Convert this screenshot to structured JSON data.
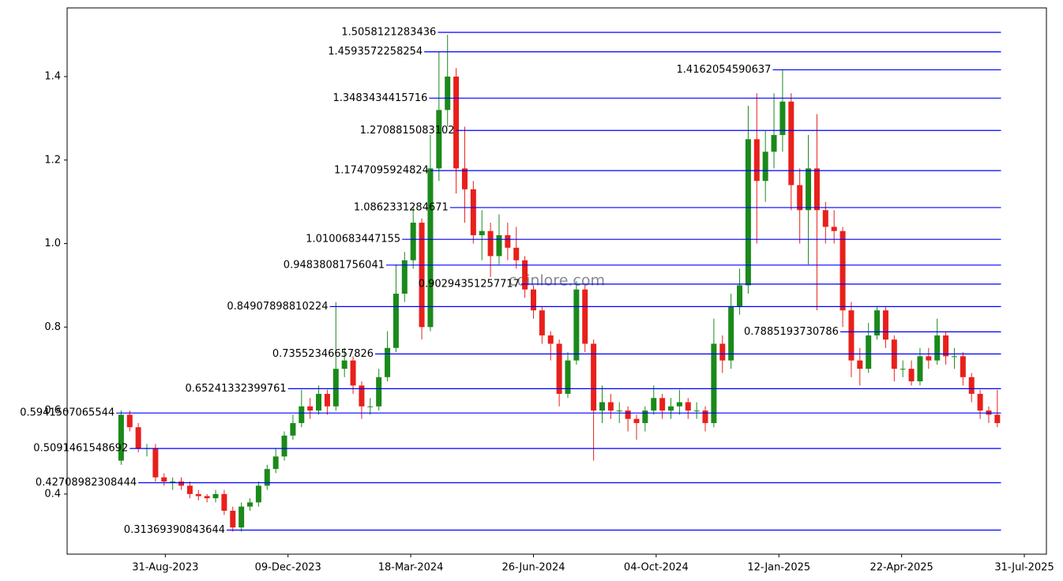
{
  "chart_data": {
    "type": "candlestick",
    "watermark": "coinlore.com",
    "up_color": "#1a8a1a",
    "down_color": "#e8201a",
    "level_color": "#0000ff",
    "watermark_color": "#8a8a8a",
    "xlim": [
      "2023-06-12",
      "2025-08-18"
    ],
    "xticks": [
      {
        "value": "2023-08-31",
        "label": "31-Aug-2023"
      },
      {
        "value": "2023-12-09",
        "label": "09-Dec-2023"
      },
      {
        "value": "2024-03-18",
        "label": "18-Mar-2024"
      },
      {
        "value": "2024-06-26",
        "label": "26-Jun-2024"
      },
      {
        "value": "2024-10-04",
        "label": "04-Oct-2024"
      },
      {
        "value": "2025-01-12",
        "label": "12-Jan-2025"
      },
      {
        "value": "2025-04-22",
        "label": "22-Apr-2025"
      },
      {
        "value": "2025-07-31",
        "label": "31-Jul-2025"
      }
    ],
    "ylim": [
      0.256,
      1.5645
    ],
    "yticks": [
      0.4,
      0.6,
      0.8,
      {
        "value": 1.0,
        "label": "1.0"
      },
      1.2,
      1.4
    ],
    "x": [
      "2023-07-26",
      "2023-08-02",
      "2023-08-09",
      "2023-08-16",
      "2023-08-23",
      "2023-08-30",
      "2023-09-06",
      "2023-09-13",
      "2023-09-20",
      "2023-09-27",
      "2023-10-04",
      "2023-10-11",
      "2023-10-18",
      "2023-10-25",
      "2023-11-01",
      "2023-11-08",
      "2023-11-15",
      "2023-11-22",
      "2023-11-29",
      "2023-12-06",
      "2023-12-13",
      "2023-12-20",
      "2023-12-27",
      "2024-01-03",
      "2024-01-10",
      "2024-01-17",
      "2024-01-24",
      "2024-01-31",
      "2024-02-07",
      "2024-02-14",
      "2024-02-21",
      "2024-02-28",
      "2024-03-06",
      "2024-03-13",
      "2024-03-20",
      "2024-03-27",
      "2024-04-03",
      "2024-04-10",
      "2024-04-17",
      "2024-04-24",
      "2024-05-01",
      "2024-05-08",
      "2024-05-15",
      "2024-05-22",
      "2024-05-29",
      "2024-06-05",
      "2024-06-12",
      "2024-06-19",
      "2024-06-26",
      "2024-07-03",
      "2024-07-10",
      "2024-07-17",
      "2024-07-24",
      "2024-07-31",
      "2024-08-07",
      "2024-08-14",
      "2024-08-21",
      "2024-08-28",
      "2024-09-04",
      "2024-09-11",
      "2024-09-18",
      "2024-09-25",
      "2024-10-02",
      "2024-10-09",
      "2024-10-16",
      "2024-10-23",
      "2024-10-30",
      "2024-11-06",
      "2024-11-13",
      "2024-11-20",
      "2024-11-27",
      "2024-12-04",
      "2024-12-11",
      "2024-12-18",
      "2024-12-25",
      "2025-01-01",
      "2025-01-08",
      "2025-01-15",
      "2025-01-22",
      "2025-01-29",
      "2025-02-05",
      "2025-02-12",
      "2025-02-19",
      "2025-02-26",
      "2025-03-05",
      "2025-03-12",
      "2025-03-19",
      "2025-03-26",
      "2025-04-02",
      "2025-04-09",
      "2025-04-16",
      "2025-04-23",
      "2025-04-30",
      "2025-05-07",
      "2025-05-14",
      "2025-05-21",
      "2025-05-28",
      "2025-06-04",
      "2025-06-11",
      "2025-06-18",
      "2025-06-25",
      "2025-07-02",
      "2025-07-09"
    ],
    "open": [
      0.48,
      0.59,
      0.56,
      0.51,
      0.51,
      0.44,
      0.43,
      0.43,
      0.42,
      0.4,
      0.395,
      0.39,
      0.4,
      0.36,
      0.32,
      0.37,
      0.38,
      0.42,
      0.46,
      0.49,
      0.54,
      0.57,
      0.61,
      0.6,
      0.64,
      0.61,
      0.7,
      0.72,
      0.66,
      0.61,
      0.61,
      0.68,
      0.75,
      0.88,
      0.96,
      1.05,
      0.8,
      1.18,
      1.32,
      1.4,
      1.18,
      1.13,
      1.02,
      1.03,
      0.97,
      1.02,
      0.99,
      0.96,
      0.89,
      0.84,
      0.78,
      0.76,
      0.64,
      0.72,
      0.89,
      0.76,
      0.6,
      0.62,
      0.6,
      0.6,
      0.58,
      0.57,
      0.6,
      0.63,
      0.6,
      0.61,
      0.62,
      0.6,
      0.6,
      0.57,
      0.76,
      0.72,
      0.85,
      0.9,
      1.25,
      1.15,
      1.22,
      1.26,
      1.34,
      1.14,
      1.08,
      1.18,
      1.08,
      1.04,
      1.03,
      0.84,
      0.72,
      0.7,
      0.78,
      0.84,
      0.77,
      0.7,
      0.7,
      0.67,
      0.73,
      0.72,
      0.78,
      0.73,
      0.73,
      0.68,
      0.64,
      0.6,
      0.59
    ],
    "high": [
      0.6,
      0.6,
      0.57,
      0.52,
      0.52,
      0.45,
      0.44,
      0.44,
      0.43,
      0.41,
      0.4,
      0.41,
      0.41,
      0.37,
      0.38,
      0.39,
      0.43,
      0.47,
      0.51,
      0.55,
      0.59,
      0.65,
      0.63,
      0.66,
      0.65,
      0.86,
      0.75,
      0.73,
      0.67,
      0.63,
      0.7,
      0.79,
      0.95,
      0.98,
      1.09,
      1.06,
      1.26,
      1.46,
      1.5,
      1.42,
      1.28,
      1.15,
      1.08,
      1.05,
      1.07,
      1.05,
      1.04,
      0.97,
      0.9,
      0.85,
      0.79,
      0.77,
      0.74,
      0.91,
      0.9,
      0.77,
      0.66,
      0.64,
      0.62,
      0.61,
      0.59,
      0.61,
      0.66,
      0.64,
      0.63,
      0.65,
      0.63,
      0.62,
      0.61,
      0.82,
      0.78,
      0.88,
      0.94,
      1.33,
      1.36,
      1.27,
      1.36,
      1.416,
      1.36,
      1.18,
      1.26,
      1.31,
      1.1,
      1.08,
      1.04,
      0.86,
      0.75,
      0.81,
      0.85,
      0.85,
      0.78,
      0.72,
      0.72,
      0.75,
      0.75,
      0.82,
      0.79,
      0.75,
      0.74,
      0.69,
      0.65,
      0.61,
      0.65
    ],
    "low": [
      0.47,
      0.55,
      0.5,
      0.49,
      0.43,
      0.42,
      0.41,
      0.41,
      0.39,
      0.385,
      0.38,
      0.38,
      0.35,
      0.31,
      0.31,
      0.36,
      0.37,
      0.41,
      0.45,
      0.48,
      0.53,
      0.56,
      0.58,
      0.59,
      0.59,
      0.6,
      0.68,
      0.64,
      0.58,
      0.59,
      0.6,
      0.67,
      0.74,
      0.86,
      0.94,
      0.77,
      0.79,
      1.15,
      1.28,
      1.12,
      1.05,
      1.0,
      0.96,
      0.92,
      0.95,
      0.96,
      0.94,
      0.87,
      0.82,
      0.76,
      0.72,
      0.61,
      0.63,
      0.71,
      0.74,
      0.48,
      0.57,
      0.58,
      0.57,
      0.55,
      0.53,
      0.55,
      0.59,
      0.58,
      0.58,
      0.59,
      0.58,
      0.58,
      0.55,
      0.56,
      0.69,
      0.7,
      0.83,
      0.88,
      1.0,
      1.1,
      1.18,
      1.22,
      1.08,
      1.0,
      0.95,
      0.84,
      1.0,
      1.0,
      0.8,
      0.68,
      0.66,
      0.69,
      0.77,
      0.75,
      0.67,
      0.68,
      0.66,
      0.66,
      0.7,
      0.71,
      0.71,
      0.7,
      0.66,
      0.62,
      0.58,
      0.57,
      0.56
    ],
    "close": [
      0.59,
      0.56,
      0.51,
      0.51,
      0.44,
      0.43,
      0.43,
      0.42,
      0.4,
      0.395,
      0.39,
      0.4,
      0.36,
      0.32,
      0.37,
      0.38,
      0.42,
      0.46,
      0.49,
      0.54,
      0.57,
      0.61,
      0.6,
      0.64,
      0.61,
      0.7,
      0.72,
      0.66,
      0.61,
      0.61,
      0.68,
      0.75,
      0.88,
      0.96,
      1.05,
      0.8,
      1.18,
      1.32,
      1.4,
      1.18,
      1.13,
      1.02,
      1.03,
      0.97,
      1.02,
      0.99,
      0.96,
      0.89,
      0.84,
      0.78,
      0.76,
      0.64,
      0.72,
      0.89,
      0.76,
      0.6,
      0.62,
      0.6,
      0.6,
      0.58,
      0.57,
      0.6,
      0.63,
      0.6,
      0.61,
      0.62,
      0.6,
      0.6,
      0.57,
      0.76,
      0.72,
      0.85,
      0.9,
      1.25,
      1.15,
      1.22,
      1.26,
      1.34,
      1.14,
      1.08,
      1.18,
      1.08,
      1.04,
      1.03,
      0.84,
      0.72,
      0.7,
      0.78,
      0.84,
      0.77,
      0.7,
      0.7,
      0.67,
      0.73,
      0.72,
      0.78,
      0.73,
      0.73,
      0.68,
      0.64,
      0.6,
      0.59,
      0.57
    ],
    "levels": [
      {
        "value": 1.5058121283436,
        "start": "2024-04-09"
      },
      {
        "value": 1.4593572258254,
        "start": "2024-03-29"
      },
      {
        "value": 1.4162054590637,
        "start": "2025-01-07"
      },
      {
        "value": 1.3483434415716,
        "start": "2024-04-02"
      },
      {
        "value": 1.2708815083102,
        "start": "2024-04-24"
      },
      {
        "value": 1.1747095924824,
        "start": "2024-04-03"
      },
      {
        "value": 1.0862331284671,
        "start": "2024-04-19"
      },
      {
        "value": 1.0100683447155,
        "start": "2024-03-11"
      },
      {
        "value": 0.94838081756041,
        "start": "2024-02-27"
      },
      {
        "value": 0.90294351257717,
        "start": "2024-06-16"
      },
      {
        "value": 0.84907898810224,
        "start": "2024-01-12"
      },
      {
        "value": 0.7885193730786,
        "start": "2025-03-03"
      },
      {
        "value": 0.73552346657826,
        "start": "2024-02-18"
      },
      {
        "value": 0.65241332399761,
        "start": "2023-12-09"
      },
      {
        "value": 0.5941507065544,
        "start": "2023-07-22"
      },
      {
        "value": 0.5091461548692,
        "start": "2023-08-02"
      },
      {
        "value": 0.42708982308444,
        "start": "2023-08-09"
      },
      {
        "value": 0.31369390843644,
        "start": "2023-10-20"
      }
    ],
    "levels_end": "2025-07-12"
  }
}
